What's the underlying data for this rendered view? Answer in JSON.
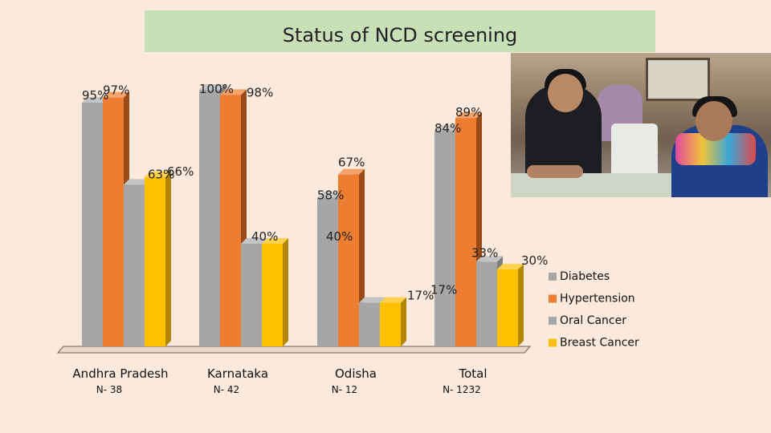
{
  "chart_data": {
    "type": "bar",
    "title": "Status of NCD screening",
    "categories": [
      "Andhra Pradesh",
      "Karnataka",
      "Odisha",
      "Total"
    ],
    "sublabels": [
      "N- 38",
      "N- 42",
      "N- 12",
      "N- 1232"
    ],
    "series": [
      {
        "name": "Diabetes",
        "color": "#a6a6a6",
        "values": [
          95,
          100,
          58,
          84
        ]
      },
      {
        "name": "Hypertension",
        "color": "#ed7d31",
        "values": [
          97,
          98,
          67,
          89
        ]
      },
      {
        "name": "Oral Cancer",
        "color": "#a6a6a6",
        "values": [
          63,
          40,
          17,
          33
        ]
      },
      {
        "name": "Breast Cancer",
        "color": "#ffc000",
        "values": [
          66,
          40,
          17,
          30
        ]
      }
    ],
    "value_suffix": "%",
    "ylim": [
      0,
      100
    ],
    "legend_position": "right"
  }
}
